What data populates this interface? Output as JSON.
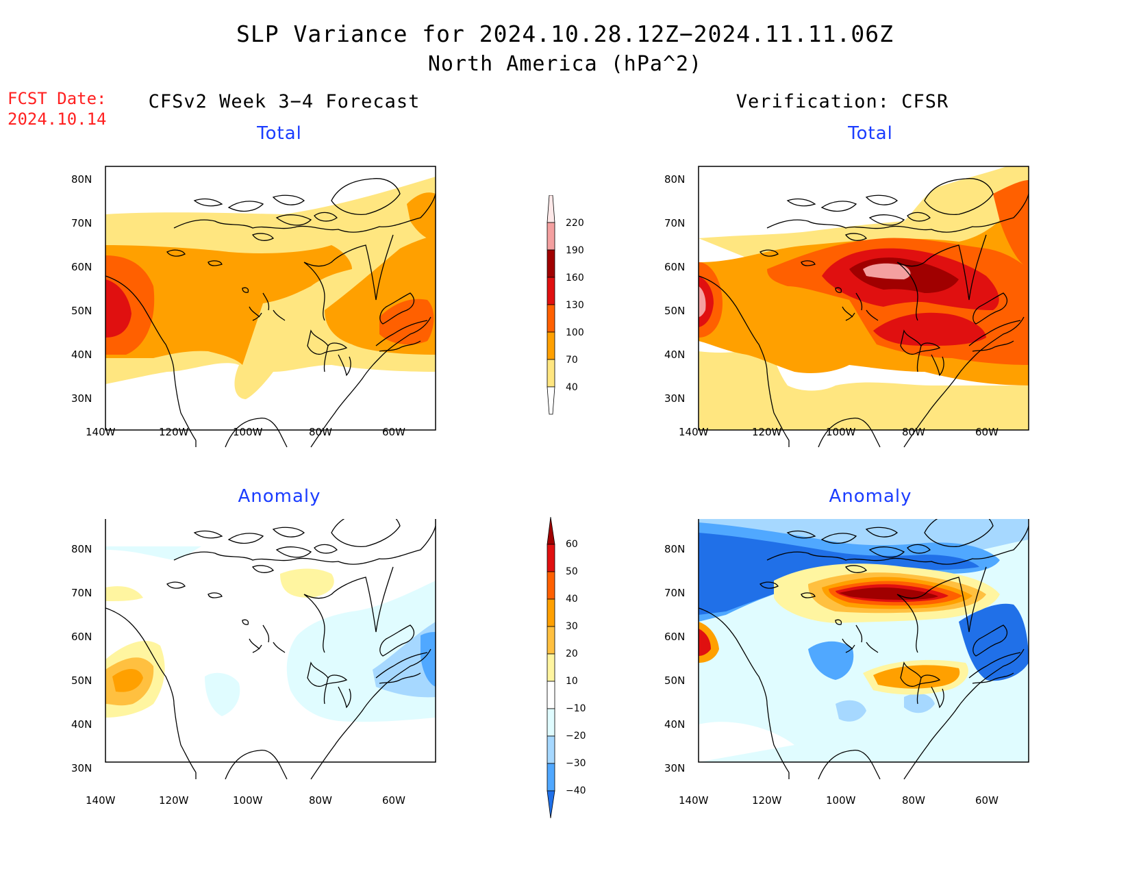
{
  "title": {
    "line1": "SLP Variance for 2024.10.28.12Z−2024.11.11.06Z",
    "line2": "North America (hPa^2)"
  },
  "fcst_date": {
    "label": "FCST Date:",
    "value": "2024.10.14"
  },
  "columns": {
    "left": "CFSv2 Week 3−4 Forecast",
    "right": "Verification: CFSR"
  },
  "panels": {
    "top_left": "Total",
    "top_right": "Total",
    "bottom_left": "Anomaly",
    "bottom_right": "Anomaly"
  },
  "axes": {
    "lon_ticks": [
      "140W",
      "120W",
      "100W",
      "80W",
      "60W"
    ],
    "lat_ticks": [
      "80N",
      "70N",
      "60N",
      "50N",
      "40N",
      "30N"
    ]
  },
  "colorbar_total": {
    "levels": [
      "40",
      "70",
      "100",
      "130",
      "160",
      "190",
      "220"
    ],
    "colors": [
      "#ffe680",
      "#ffa000",
      "#ff6000",
      "#e01010",
      "#a00000",
      "#f4a0a0",
      "#fde8e8"
    ]
  },
  "colorbar_anomaly": {
    "levels": [
      "60",
      "50",
      "40",
      "30",
      "20",
      "10",
      "−10",
      "−20",
      "−30",
      "−40"
    ],
    "colors": [
      "#a00000",
      "#e01010",
      "#ff6000",
      "#ffa000",
      "#ffc040",
      "#fff5a0",
      "#ffffff",
      "#e0fcff",
      "#a6d8ff",
      "#50a8ff",
      "#2070e8"
    ]
  },
  "map_colors": {
    "t1": "#ffe680",
    "t2": "#ffa000",
    "t3": "#ff6000",
    "t4": "#e01010",
    "t5": "#a00000",
    "t6": "#f4a0a0",
    "a_neg1": "#e0fcff",
    "a_neg2": "#a6d8ff",
    "a_neg3": "#50a8ff",
    "a_neg4": "#2070e8",
    "a_pos1": "#fff5a0",
    "a_pos2": "#ffc040",
    "a_pos3": "#ffa000",
    "a_pos4": "#ff6000",
    "a_pos5": "#e01010",
    "a_pos6": "#a00000"
  }
}
